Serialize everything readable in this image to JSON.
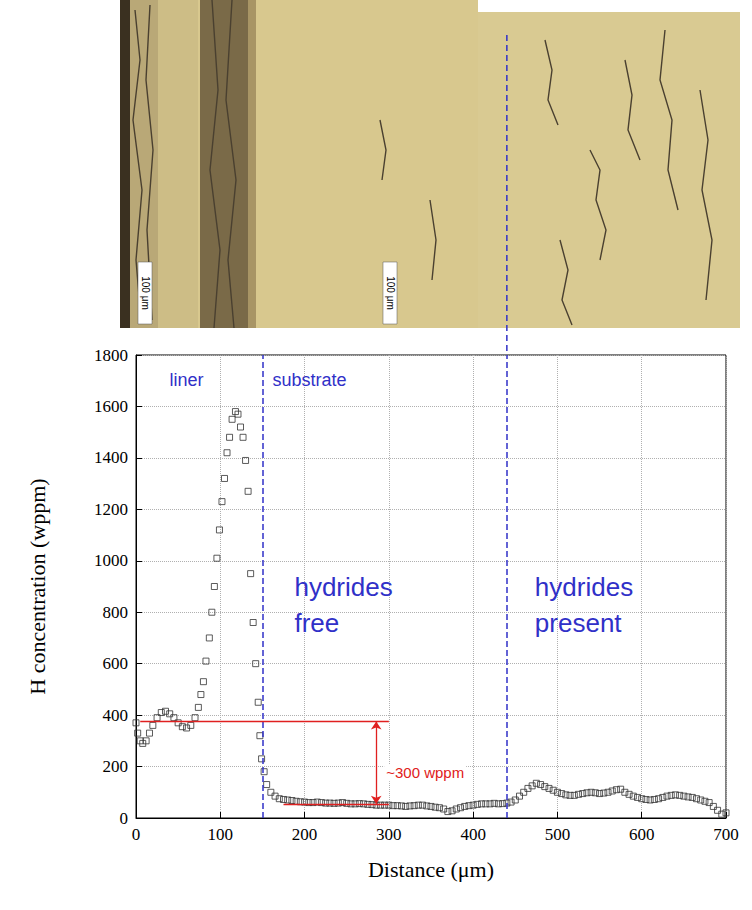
{
  "micrograph": {
    "scale_bar_labels": [
      "100 μm",
      "100 μm"
    ]
  },
  "chart_data": {
    "type": "scatter",
    "x_label": "Distance (μm)",
    "y_label": "H concentration (wppm)",
    "marker": "square",
    "color": "#333333",
    "x": [
      0,
      2,
      5,
      8,
      12,
      16,
      20,
      25,
      30,
      35,
      40,
      45,
      50,
      55,
      60,
      65,
      70,
      74,
      77,
      80,
      83,
      87,
      90,
      93,
      96,
      99,
      102,
      105,
      108,
      111,
      114,
      118,
      121,
      124,
      127,
      130,
      133,
      136,
      139,
      142,
      145,
      147,
      149,
      152,
      155,
      160,
      165,
      170,
      175,
      180,
      185,
      190,
      195,
      200,
      205,
      210,
      215,
      220,
      225,
      230,
      235,
      240,
      245,
      250,
      255,
      260,
      265,
      270,
      275,
      280,
      285,
      290,
      295,
      300,
      305,
      310,
      315,
      320,
      325,
      330,
      335,
      340,
      345,
      350,
      355,
      360,
      365,
      370,
      375,
      380,
      385,
      390,
      395,
      400,
      405,
      410,
      415,
      420,
      425,
      430,
      435,
      440,
      445,
      450,
      455,
      460,
      465,
      470,
      475,
      480,
      485,
      490,
      495,
      500,
      505,
      510,
      515,
      520,
      525,
      530,
      535,
      540,
      545,
      550,
      555,
      560,
      565,
      570,
      575,
      580,
      585,
      590,
      595,
      600,
      605,
      610,
      615,
      620,
      625,
      630,
      635,
      640,
      645,
      650,
      655,
      660,
      665,
      670,
      675,
      680,
      685,
      690,
      695,
      700
    ],
    "values": [
      370,
      330,
      300,
      290,
      300,
      330,
      360,
      390,
      410,
      415,
      405,
      390,
      370,
      355,
      350,
      360,
      390,
      430,
      480,
      530,
      610,
      700,
      800,
      900,
      1010,
      1120,
      1230,
      1320,
      1420,
      1480,
      1550,
      1580,
      1570,
      1520,
      1480,
      1390,
      1270,
      950,
      760,
      600,
      450,
      320,
      230,
      180,
      130,
      100,
      85,
      75,
      72,
      70,
      68,
      65,
      63,
      62,
      60,
      60,
      62,
      60,
      58,
      58,
      57,
      58,
      60,
      57,
      55,
      55,
      56,
      55,
      53,
      52,
      50,
      50,
      50,
      50,
      48,
      48,
      47,
      45,
      47,
      48,
      50,
      50,
      47,
      45,
      42,
      40,
      35,
      25,
      28,
      35,
      40,
      45,
      48,
      50,
      53,
      55,
      55,
      55,
      57,
      55,
      56,
      58,
      62,
      70,
      85,
      100,
      115,
      125,
      135,
      130,
      122,
      115,
      108,
      100,
      95,
      90,
      88,
      88,
      92,
      95,
      98,
      100,
      98,
      95,
      97,
      100,
      105,
      110,
      112,
      100,
      92,
      85,
      80,
      75,
      72,
      70,
      72,
      75,
      80,
      85,
      88,
      90,
      88,
      85,
      82,
      80,
      75,
      70,
      65,
      60,
      45,
      30,
      15,
      20
    ],
    "xlim": [
      0,
      700
    ],
    "xticks": [
      0,
      100,
      200,
      300,
      400,
      500,
      600,
      700
    ],
    "ylim": [
      0,
      1800
    ],
    "yticks": [
      0,
      200,
      400,
      600,
      800,
      1000,
      1200,
      1400,
      1600,
      1800
    ],
    "grid": true,
    "vlines": [
      {
        "x": 150,
        "color": "#3030c8",
        "line_style": "dashed"
      },
      {
        "x": 440,
        "color": "#3030c8",
        "line_style": "dashed"
      }
    ],
    "hlines": [
      {
        "y": 375,
        "x": [
          5,
          300
        ],
        "color": "#e02020"
      },
      {
        "y": 55,
        "x": [
          175,
          300
        ],
        "color": "#e02020"
      }
    ],
    "arrow": {
      "x": 285,
      "y": [
        375,
        55
      ],
      "text": "~300 wppm",
      "color": "#e02020"
    },
    "region_labels": [
      {
        "text": "liner",
        "color": "#3030c8"
      },
      {
        "text": "substrate",
        "color": "#3030c8"
      },
      {
        "text": "hydrides free",
        "color": "#3030c8"
      },
      {
        "text": "hydrides present",
        "color": "#3030c8"
      }
    ]
  }
}
